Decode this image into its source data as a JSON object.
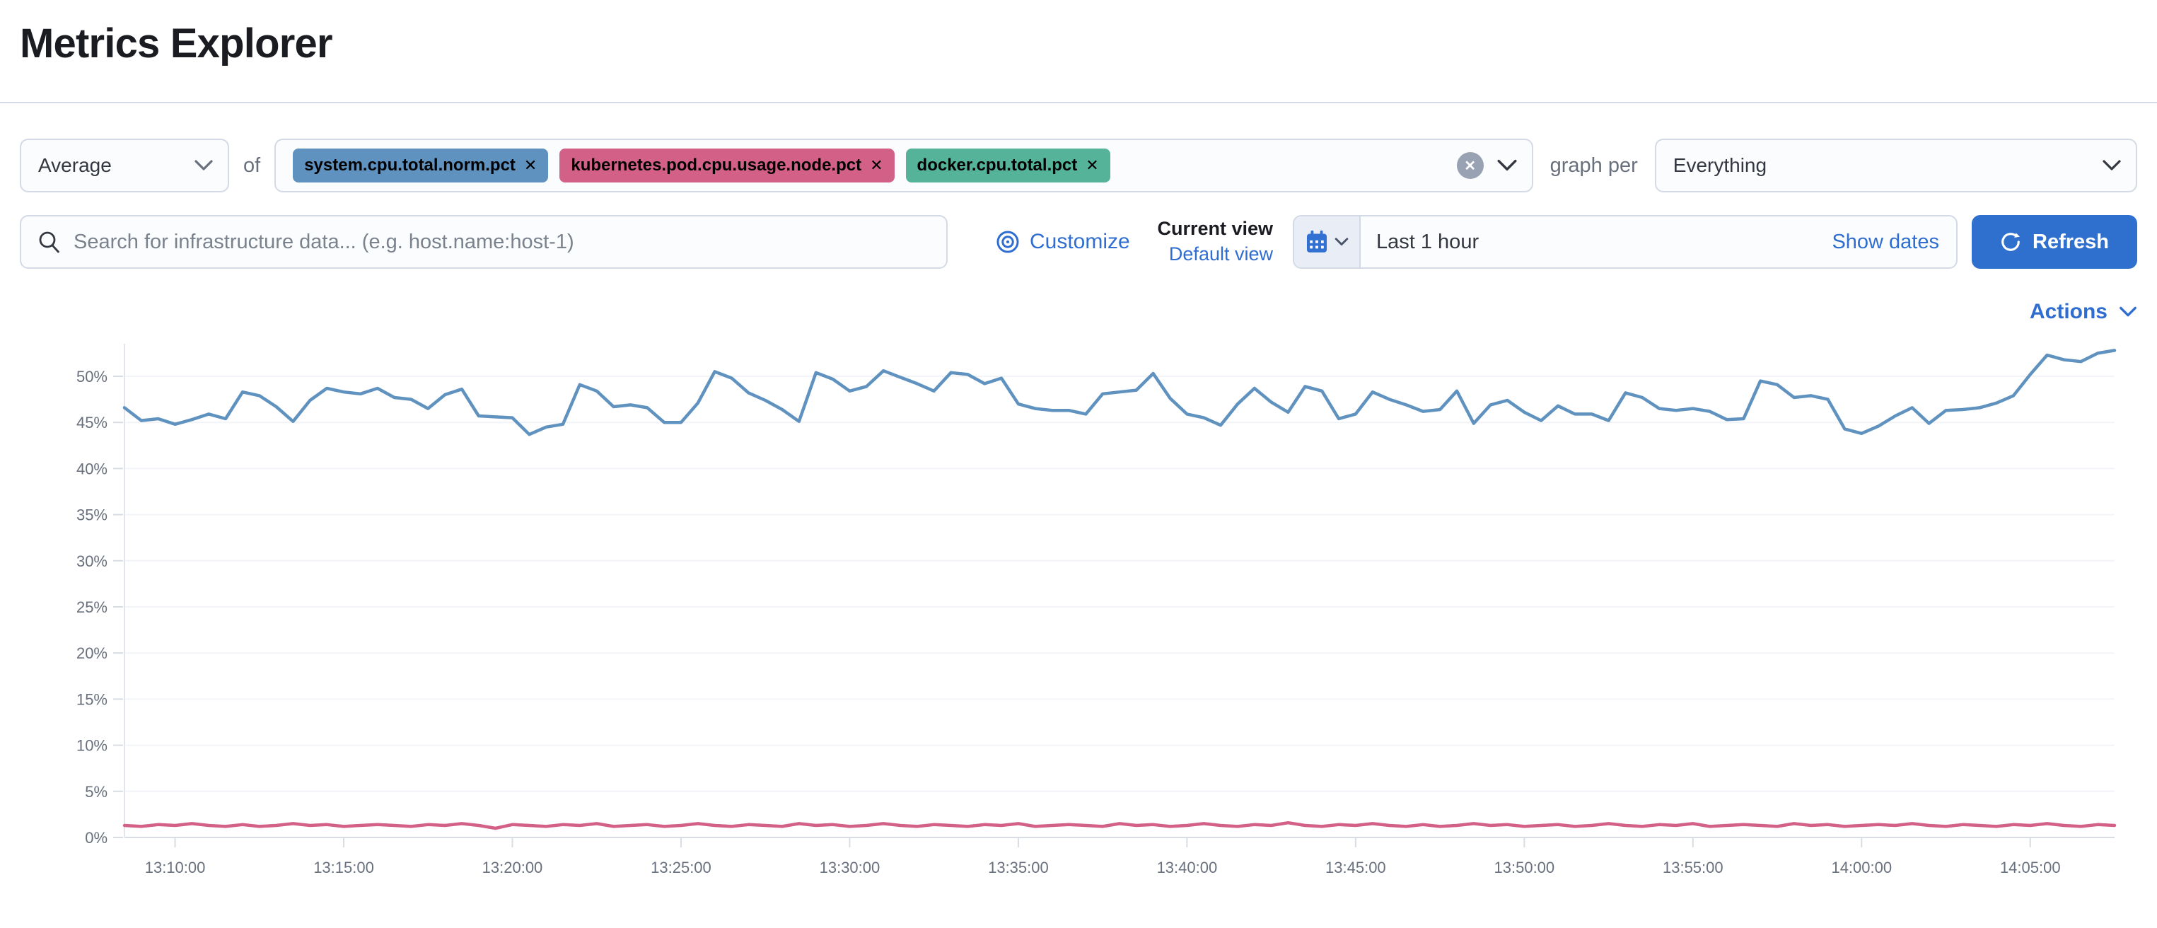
{
  "page": {
    "title": "Metrics Explorer"
  },
  "icons": {
    "close": "✕",
    "clear": "✕"
  },
  "colors": {
    "accent_button": "#2f70cf",
    "link": "#2f6dd0",
    "tag_blue": "#6092C0",
    "tag_pink": "#D36086",
    "tag_green": "#54B399",
    "axis_text": "#69707d",
    "border": "#d3dae6"
  },
  "toolbar": {
    "aggregation": {
      "value": "Average"
    },
    "of_label": "of",
    "metrics": [
      {
        "label": "system.cpu.total.norm.pct",
        "color": "#6092C0"
      },
      {
        "label": "kubernetes.pod.cpu.usage.node.pct",
        "color": "#D36086"
      },
      {
        "label": "docker.cpu.total.pct",
        "color": "#54B399"
      }
    ],
    "graph_per_label": "graph per",
    "group_by": {
      "value": "Everything"
    }
  },
  "search": {
    "placeholder": "Search for infrastructure data... (e.g. host.name:host-1)"
  },
  "view_controls": {
    "customize_label": "Customize",
    "current_view_label": "Current view",
    "default_view_label": "Default view"
  },
  "time_controls": {
    "range_label": "Last 1 hour",
    "show_dates_label": "Show dates",
    "refresh_label": "Refresh"
  },
  "actions_label": "Actions",
  "chart_data": {
    "type": "line",
    "title": "",
    "xlabel": "",
    "ylabel": "",
    "unit": "%",
    "ylim": [
      0,
      55
    ],
    "y_tick_step": 5,
    "grid": "faint-horizontal",
    "legend": "none",
    "x_start": "13:08:30",
    "x_end": "14:07:30",
    "interval_seconds": 30,
    "x_tick_labels": [
      "13:10:00",
      "13:15:00",
      "13:20:00",
      "13:25:00",
      "13:30:00",
      "13:35:00",
      "13:40:00",
      "13:45:00",
      "13:50:00",
      "13:55:00",
      "14:00:00",
      "14:05:00"
    ],
    "y_tick_labels": [
      "0%",
      "5%",
      "10%",
      "15%",
      "20%",
      "25%",
      "30%",
      "35%",
      "40%",
      "45%",
      "50%"
    ],
    "series": [
      {
        "name": "system.cpu.total.norm.pct",
        "color": "#6092C0",
        "values": [
          46.6,
          45.2,
          45.4,
          44.8,
          45.3,
          45.9,
          45.4,
          48.3,
          47.9,
          46.7,
          45.1,
          47.4,
          48.7,
          48.3,
          48.1,
          48.7,
          47.7,
          47.5,
          46.5,
          48.0,
          48.6,
          45.7,
          45.6,
          45.5,
          43.7,
          44.5,
          44.8,
          49.1,
          48.4,
          46.7,
          46.9,
          46.6,
          45.0,
          45.0,
          47.1,
          50.5,
          49.8,
          48.2,
          47.4,
          46.4,
          45.1,
          50.4,
          49.7,
          48.4,
          48.9,
          50.6,
          49.9,
          49.2,
          48.4,
          50.4,
          50.2,
          49.2,
          49.8,
          47.0,
          46.5,
          46.3,
          46.3,
          45.9,
          48.1,
          48.3,
          48.5,
          50.3,
          47.6,
          45.9,
          45.5,
          44.7,
          47.0,
          48.7,
          47.2,
          46.1,
          48.9,
          48.4,
          45.4,
          45.9,
          48.3,
          47.5,
          46.9,
          46.2,
          46.4,
          48.4,
          44.9,
          46.9,
          47.4,
          46.1,
          45.2,
          46.8,
          45.9,
          45.9,
          45.2,
          48.2,
          47.7,
          46.5,
          46.3,
          46.5,
          46.2,
          45.3,
          45.4,
          49.5,
          49.1,
          47.7,
          47.9,
          47.5,
          44.3,
          43.8,
          44.6,
          45.7,
          46.6,
          44.9,
          46.3,
          46.4,
          46.6,
          47.1,
          47.9,
          50.2,
          52.3,
          51.8,
          51.6,
          52.5,
          52.8
        ]
      },
      {
        "name": "kubernetes.pod.cpu.usage.node.pct",
        "color": "#D36086",
        "values": [
          1.3,
          1.2,
          1.4,
          1.3,
          1.5,
          1.3,
          1.2,
          1.4,
          1.2,
          1.3,
          1.5,
          1.3,
          1.4,
          1.2,
          1.3,
          1.4,
          1.3,
          1.2,
          1.4,
          1.3,
          1.5,
          1.3,
          1.0,
          1.4,
          1.3,
          1.2,
          1.4,
          1.3,
          1.5,
          1.2,
          1.3,
          1.4,
          1.2,
          1.3,
          1.5,
          1.3,
          1.2,
          1.4,
          1.3,
          1.2,
          1.5,
          1.3,
          1.4,
          1.2,
          1.3,
          1.5,
          1.3,
          1.2,
          1.4,
          1.3,
          1.2,
          1.4,
          1.3,
          1.5,
          1.2,
          1.3,
          1.4,
          1.3,
          1.2,
          1.5,
          1.3,
          1.4,
          1.2,
          1.3,
          1.5,
          1.3,
          1.2,
          1.4,
          1.3,
          1.6,
          1.3,
          1.2,
          1.4,
          1.3,
          1.5,
          1.3,
          1.2,
          1.4,
          1.2,
          1.3,
          1.5,
          1.3,
          1.4,
          1.2,
          1.3,
          1.4,
          1.2,
          1.3,
          1.5,
          1.3,
          1.2,
          1.4,
          1.3,
          1.5,
          1.2,
          1.3,
          1.4,
          1.3,
          1.2,
          1.5,
          1.3,
          1.4,
          1.2,
          1.3,
          1.4,
          1.3,
          1.5,
          1.3,
          1.2,
          1.4,
          1.3,
          1.2,
          1.4,
          1.3,
          1.5,
          1.3,
          1.2,
          1.4,
          1.3
        ]
      }
    ]
  }
}
